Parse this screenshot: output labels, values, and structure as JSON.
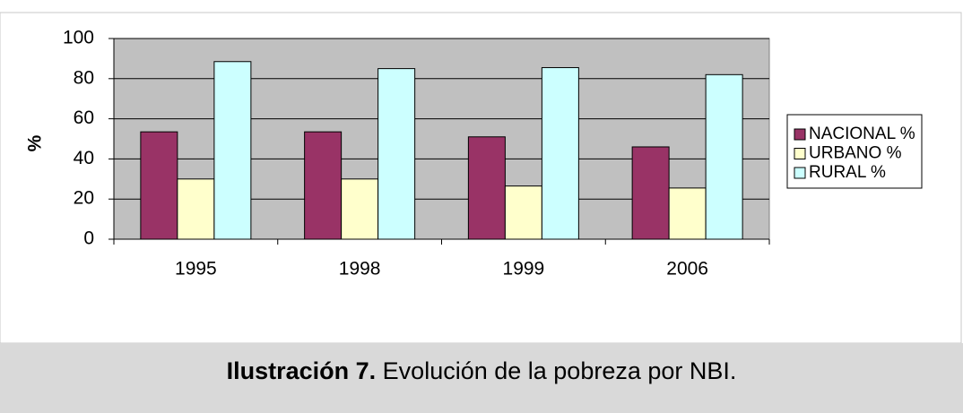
{
  "chart_data": {
    "type": "bar",
    "y_label": "%",
    "caption": {
      "label": "Ilustración 7.",
      "text": "Evolución de la pobreza por NBI."
    },
    "categories": [
      "1995",
      "1998",
      "1999",
      "2006"
    ],
    "series": [
      {
        "name": "NACIONAL %",
        "color": "#993366",
        "values": [
          53.5,
          53.5,
          51,
          46
        ]
      },
      {
        "name": "URBANO %",
        "color": "#ffffcc",
        "values": [
          30,
          30,
          26.5,
          25.5
        ]
      },
      {
        "name": "RURAL %",
        "color": "#ccffff",
        "values": [
          88.5,
          85,
          85.5,
          82
        ]
      }
    ],
    "ylim": [
      0,
      100
    ],
    "yticks": [
      0,
      20,
      40,
      60,
      80,
      100
    ],
    "grid": true,
    "legend": "right",
    "plot_background": "#c0c0c0"
  }
}
